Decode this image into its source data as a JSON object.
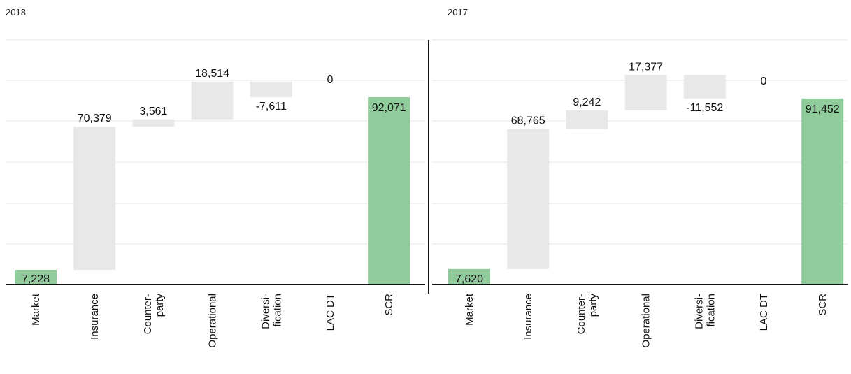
{
  "colors": {
    "step_bar": "#e8e8e8",
    "total_bar": "#8fcb9b",
    "axis": "#111111",
    "grid": "#e4e4e4",
    "text": "#111111"
  },
  "chart_data": [
    {
      "type": "waterfall",
      "title": "2018",
      "categories": [
        [
          "Market"
        ],
        [
          "Insurance"
        ],
        [
          "Counter-",
          "party"
        ],
        [
          "Operational"
        ],
        [
          "Diversi-",
          "fication"
        ],
        [
          "LAC DT"
        ],
        [
          "SCR"
        ]
      ],
      "values": [
        7228,
        70379,
        3561,
        18514,
        -7611,
        0,
        92071
      ],
      "labels": [
        "7,228",
        "70,379",
        "3,561",
        "18,514",
        "-7,611",
        "0",
        "92,071"
      ],
      "kinds": [
        "total",
        "step",
        "step",
        "step",
        "step",
        "step",
        "total"
      ],
      "ylim": [
        0,
        120000
      ],
      "grid": true
    },
    {
      "type": "waterfall",
      "title": "2017",
      "categories": [
        [
          "Market"
        ],
        [
          "Insurance"
        ],
        [
          "Counter-",
          "party"
        ],
        [
          "Operational"
        ],
        [
          "Diversi-",
          "fication"
        ],
        [
          "LAC DT"
        ],
        [
          "SCR"
        ]
      ],
      "values": [
        7620,
        68765,
        9242,
        17377,
        -11552,
        0,
        91452
      ],
      "labels": [
        "7,620",
        "68,765",
        "9,242",
        "17,377",
        "-11,552",
        "0",
        "91,452"
      ],
      "kinds": [
        "total",
        "step",
        "step",
        "step",
        "step",
        "step",
        "total"
      ],
      "ylim": [
        0,
        120000
      ],
      "grid": true
    }
  ]
}
